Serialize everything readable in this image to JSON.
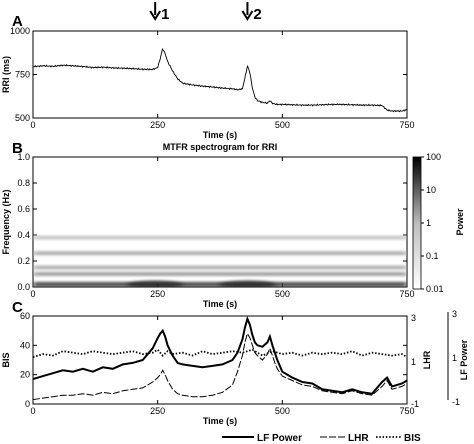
{
  "figure": {
    "panel_labels": [
      "A",
      "B",
      "C"
    ],
    "event_markers": [
      {
        "label": "1",
        "time": 245
      },
      {
        "label": "2",
        "time": 430
      }
    ]
  },
  "chart_data": [
    {
      "type": "line",
      "panel": "A",
      "title": "",
      "xlabel": "Time (s)",
      "ylabel": "RRI (ms)",
      "xlim": [
        0,
        750
      ],
      "ylim": [
        500,
        1000
      ],
      "xticks": [
        0,
        250,
        500,
        750
      ],
      "yticks": [
        500,
        750,
        1000
      ],
      "series": [
        {
          "x": [
            0,
            20,
            40,
            60,
            80,
            100,
            120,
            140,
            160,
            180,
            200,
            220,
            240,
            250,
            255,
            260,
            265,
            270,
            280,
            290,
            300,
            320,
            340,
            360,
            380,
            400,
            410,
            420,
            425,
            430,
            435,
            440,
            445,
            450,
            460,
            470,
            475,
            480,
            485,
            490,
            500,
            520,
            540,
            560,
            580,
            600,
            620,
            640,
            660,
            680,
            700,
            710,
            720,
            740,
            750
          ],
          "y": [
            795,
            800,
            797,
            803,
            800,
            796,
            790,
            792,
            788,
            786,
            784,
            780,
            779,
            790,
            840,
            900,
            870,
            825,
            770,
            725,
            700,
            690,
            683,
            678,
            672,
            668,
            662,
            668,
            730,
            800,
            760,
            670,
            620,
            600,
            590,
            585,
            600,
            585,
            580,
            578,
            578,
            576,
            574,
            574,
            576,
            578,
            578,
            576,
            574,
            574,
            572,
            545,
            540,
            540,
            548
          ]
        }
      ]
    },
    {
      "type": "heatmap",
      "panel": "B",
      "title": "MTFR spectrogram for RRI",
      "xlabel": "Time (s)",
      "ylabel": "Frequency (Hz)",
      "xlim": [
        0,
        750
      ],
      "ylim": [
        0,
        1
      ],
      "xticks": [
        0,
        250,
        500,
        750
      ],
      "yticks": [
        0,
        0.2,
        0.4,
        0.6,
        0.8,
        1
      ],
      "colorbar": {
        "label": "Power",
        "scale": "log",
        "ticks": [
          0.01,
          0.1,
          1,
          10,
          100
        ],
        "tick_labels": [
          "0.01",
          "0.1",
          "1",
          "10",
          "100"
        ],
        "colormap": [
          "#ffffff",
          "#000000"
        ]
      },
      "bands": [
        {
          "freq": 0.02,
          "power": 12
        },
        {
          "freq": 0.1,
          "power": 0.5
        },
        {
          "freq": 0.15,
          "power": 0.25
        },
        {
          "freq": 0.26,
          "power": 0.3
        },
        {
          "freq": 0.38,
          "power": 0.1
        }
      ]
    },
    {
      "type": "line",
      "panel": "C",
      "title": "",
      "xlabel": "Time (s)",
      "ylabel": "BIS",
      "ylabel_right_inner": "LHR",
      "ylabel_right_outer": "LF Power",
      "xlim": [
        0,
        750
      ],
      "ylim": [
        0,
        60
      ],
      "xticks": [
        0,
        250,
        500,
        750
      ],
      "yticks": [
        0,
        20,
        40,
        60
      ],
      "yticks_right_inner": [
        "-1",
        "1",
        "3"
      ],
      "yticks_right_outer": [
        "-1",
        "1",
        "3"
      ],
      "legend": "bottom",
      "series": [
        {
          "name": "LF Power",
          "style": "solid",
          "x": [
            0,
            20,
            40,
            60,
            80,
            100,
            120,
            140,
            160,
            180,
            200,
            220,
            240,
            250,
            255,
            260,
            265,
            270,
            280,
            290,
            300,
            320,
            340,
            360,
            380,
            400,
            410,
            420,
            425,
            430,
            435,
            440,
            445,
            450,
            460,
            470,
            475,
            480,
            485,
            490,
            500,
            520,
            540,
            560,
            580,
            600,
            620,
            640,
            660,
            680,
            700,
            710,
            720,
            740,
            750
          ],
          "y": [
            17,
            19,
            21,
            23,
            22,
            24,
            22,
            25,
            24,
            27,
            28,
            30,
            38,
            45,
            48,
            50,
            46,
            40,
            33,
            28,
            27,
            26,
            25,
            26,
            27,
            30,
            35,
            44,
            52,
            58,
            54,
            47,
            42,
            40,
            39,
            42,
            46,
            40,
            35,
            30,
            22,
            18,
            15,
            14,
            10,
            9,
            8,
            10,
            8,
            7,
            15,
            18,
            12,
            14,
            16
          ]
        },
        {
          "name": "LHR",
          "style": "dashed",
          "x": [
            0,
            20,
            40,
            60,
            80,
            100,
            120,
            140,
            160,
            180,
            200,
            220,
            240,
            250,
            255,
            260,
            265,
            270,
            280,
            290,
            300,
            320,
            340,
            360,
            380,
            400,
            410,
            420,
            425,
            430,
            435,
            440,
            445,
            450,
            460,
            470,
            475,
            480,
            485,
            490,
            500,
            520,
            540,
            560,
            580,
            600,
            620,
            640,
            660,
            680,
            700,
            710,
            720,
            740,
            750
          ],
          "y": [
            3,
            4,
            5,
            6,
            6,
            7,
            6,
            8,
            7,
            9,
            10,
            11,
            15,
            18,
            20,
            23,
            20,
            16,
            10,
            7,
            6,
            5,
            5,
            6,
            8,
            13,
            22,
            33,
            42,
            48,
            45,
            40,
            35,
            33,
            30,
            34,
            38,
            33,
            28,
            24,
            19,
            16,
            13,
            12,
            9,
            8,
            7,
            9,
            7,
            6,
            12,
            16,
            10,
            12,
            14
          ]
        },
        {
          "name": "BIS",
          "style": "dotted",
          "x": [
            0,
            20,
            40,
            60,
            80,
            100,
            120,
            140,
            160,
            180,
            200,
            220,
            240,
            250,
            260,
            270,
            280,
            300,
            320,
            340,
            360,
            380,
            400,
            420,
            440,
            460,
            480,
            500,
            520,
            540,
            560,
            580,
            600,
            620,
            640,
            660,
            680,
            700,
            720,
            740,
            750
          ],
          "y": [
            32,
            34,
            33,
            36,
            35,
            34,
            36,
            35,
            34,
            35,
            36,
            34,
            35,
            37,
            33,
            36,
            34,
            35,
            33,
            36,
            34,
            35,
            36,
            35,
            37,
            33,
            36,
            34,
            35,
            33,
            35,
            34,
            35,
            34,
            36,
            33,
            35,
            34,
            33,
            34,
            32
          ]
        }
      ]
    }
  ]
}
